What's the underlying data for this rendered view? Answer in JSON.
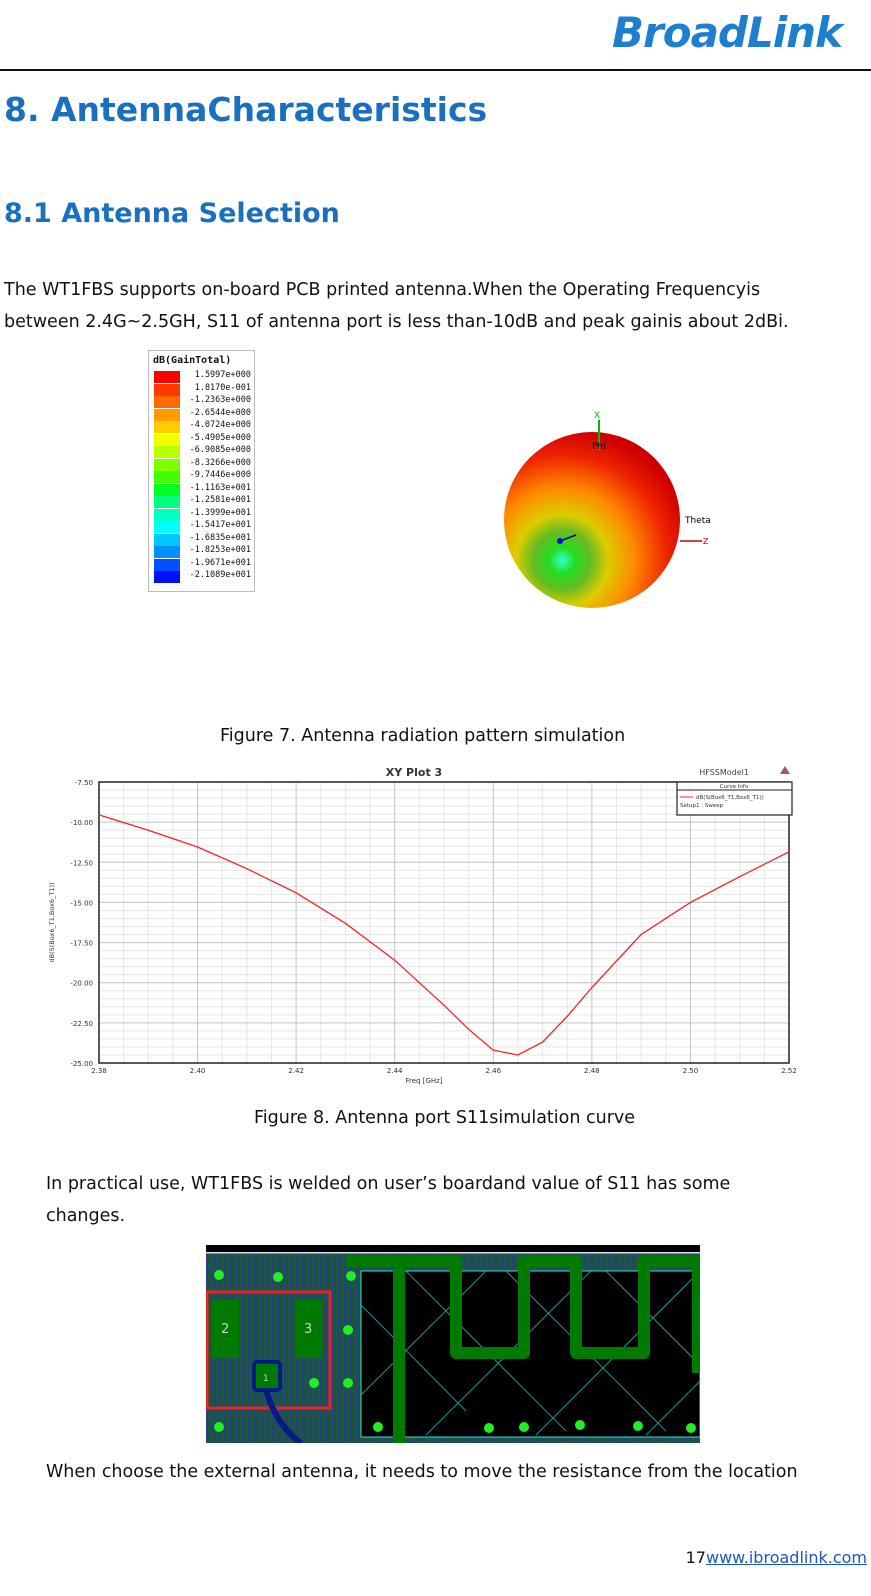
{
  "header": {
    "logo_text": "BroadLink",
    "brand_color": "#1e7fd0"
  },
  "heading": "8. AntennaCharacteristics",
  "subheading": "8.1 Antenna Selection",
  "intro": {
    "line1": "The WT1FBS supports on-board PCB printed antenna.When the Operating Frequencyis",
    "line2": "between 2.4G~2.5GH, S11 of antenna port is less than-10dB and peak gainis about 2dBi."
  },
  "radiation": {
    "legend_title": "dB(GainTotal)",
    "legend_values": [
      "1.5997e+000",
      "1.8170e-001",
      "-1.2363e+000",
      "-2.6544e+000",
      "-4.0724e+000",
      "-5.4905e+000",
      "-6.9085e+000",
      "-8.3266e+000",
      "-9.7446e+000",
      "-1.1163e+001",
      "-1.2581e+001",
      "-1.3999e+001",
      "-1.5417e+001",
      "-1.6835e+001",
      "-1.8253e+001",
      "-1.9671e+001",
      "-2.1089e+001"
    ],
    "legend_colors": [
      "#ff0000",
      "#ff3a00",
      "#ff6a00",
      "#ff9a00",
      "#ffcc00",
      "#f2ff00",
      "#b8ff00",
      "#80ff00",
      "#40ff00",
      "#00ff20",
      "#00ff80",
      "#00ffc0",
      "#00ffff",
      "#00c8ff",
      "#0090ff",
      "#0050ff",
      "#0010ff"
    ],
    "axis_labels": {
      "x": "X",
      "phi": "Phi",
      "theta": "Theta",
      "z": "Z"
    }
  },
  "caption7": "Figure 7. Antenna radiation pattern simulation",
  "chart_data": {
    "type": "line",
    "title": "XY Plot 3",
    "model_label": "HFSSModel1",
    "legend_title": "Curve Info",
    "legend_placement": "top-right",
    "xlabel": "Freq [GHz]",
    "ylabel": "dB(S(Box6_T1,Box6_T1))",
    "xlim": [
      2.38,
      2.52
    ],
    "ylim": [
      -25.0,
      -7.5
    ],
    "xticks": [
      "2.38",
      "2.40",
      "2.42",
      "2.44",
      "2.46",
      "2.48",
      "2.50",
      "2.52"
    ],
    "yticks": [
      "-7.50",
      "-10.00",
      "-12.50",
      "-15.00",
      "-17.50",
      "-20.00",
      "-22.50",
      "-25.00"
    ],
    "grid": true,
    "series": [
      {
        "name": "dB(S(Box6_T1,Box6_T1))",
        "setup": "Setup1 : Sweep",
        "color": "#ff2020",
        "x": [
          2.38,
          2.39,
          2.4,
          2.41,
          2.42,
          2.43,
          2.44,
          2.45,
          2.455,
          2.46,
          2.465,
          2.47,
          2.475,
          2.48,
          2.49,
          2.5,
          2.51,
          2.52
        ],
        "y": [
          -9.55,
          -10.5,
          -11.55,
          -12.9,
          -14.4,
          -16.3,
          -18.6,
          -21.4,
          -22.9,
          -24.2,
          -24.5,
          -23.7,
          -22.1,
          -20.3,
          -17.0,
          -15.0,
          -13.4,
          -11.85
        ]
      }
    ]
  },
  "caption8": "Figure 8. Antenna port S11simulation curve",
  "practical": {
    "line1": "In practical use, WT1FBS is welded on user’s boardand value of S11 has some",
    "line2": "changes."
  },
  "pcb": {
    "pad_labels": [
      "2",
      "3",
      "1"
    ]
  },
  "external": "When choose the external antenna, it needs to move the resistance from the location",
  "footer": {
    "page": "17",
    "url": "www.ibroadlink.com"
  }
}
